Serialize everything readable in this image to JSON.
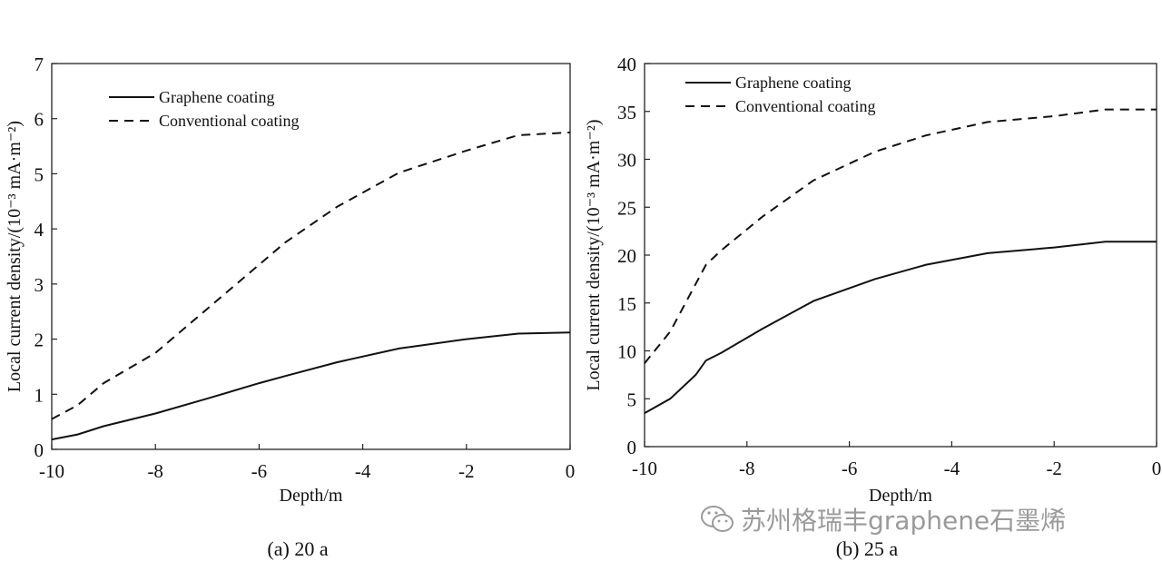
{
  "chart_data": [
    {
      "type": "line",
      "caption": "(a) 20 a",
      "xlabel": "Depth/m",
      "ylabel": "Local current density/(10⁻³ mA·m⁻²)",
      "xlim": [
        -10,
        0
      ],
      "ylim": [
        0,
        7
      ],
      "xticks": [
        -10,
        -8,
        -6,
        -4,
        -2,
        0
      ],
      "yticks": [
        0,
        1,
        2,
        3,
        4,
        5,
        6,
        7
      ],
      "grid": false,
      "legend_position": "top-left",
      "series": [
        {
          "name": "Graphene coating",
          "style": "solid",
          "x": [
            -10,
            -9.5,
            -9,
            -8,
            -7,
            -6,
            -5.5,
            -4.5,
            -3.3,
            -2,
            -1,
            0
          ],
          "y": [
            0.18,
            0.27,
            0.42,
            0.65,
            0.92,
            1.2,
            1.33,
            1.58,
            1.83,
            2.0,
            2.1,
            2.12
          ]
        },
        {
          "name": "Conventional coating",
          "style": "dashed",
          "x": [
            -10,
            -9.5,
            -9,
            -8,
            -7,
            -6,
            -5.5,
            -4.5,
            -3.3,
            -2,
            -1,
            0
          ],
          "y": [
            0.55,
            0.8,
            1.2,
            1.75,
            2.55,
            3.35,
            3.75,
            4.4,
            5.02,
            5.42,
            5.7,
            5.75
          ]
        }
      ]
    },
    {
      "type": "line",
      "caption": "(b) 25 a",
      "xlabel": "Depth/m",
      "ylabel": "Local current density/(10⁻³ mA·m⁻²)",
      "xlim": [
        -10,
        0
      ],
      "ylim": [
        0,
        40
      ],
      "xticks": [
        -10,
        -8,
        -6,
        -4,
        -2,
        0
      ],
      "yticks": [
        0,
        5,
        10,
        15,
        20,
        25,
        30,
        35,
        40
      ],
      "grid": false,
      "legend_position": "top-left",
      "series": [
        {
          "name": "Graphene coating",
          "style": "solid",
          "x": [
            -10,
            -9.5,
            -9,
            -8.8,
            -8.5,
            -7.7,
            -6.7,
            -5.5,
            -4.5,
            -3.3,
            -2,
            -1,
            0
          ],
          "y": [
            3.5,
            5,
            7.5,
            9,
            9.8,
            12.3,
            15.2,
            17.5,
            19,
            20.2,
            20.8,
            21.4,
            21.4
          ]
        },
        {
          "name": "Conventional coating",
          "style": "dashed",
          "x": [
            -10,
            -9.5,
            -9.2,
            -8.8,
            -8.5,
            -7.7,
            -6.7,
            -5.5,
            -4.5,
            -3.3,
            -2,
            -1,
            0
          ],
          "y": [
            8.7,
            12,
            15,
            19,
            20.5,
            24,
            27.8,
            30.8,
            32.5,
            33.9,
            34.5,
            35.2,
            35.2
          ]
        }
      ]
    }
  ],
  "watermark": {
    "text": "苏州格瑞丰graphene石墨烯",
    "icon": "wechat-icon",
    "color": "#9a9a9a"
  }
}
